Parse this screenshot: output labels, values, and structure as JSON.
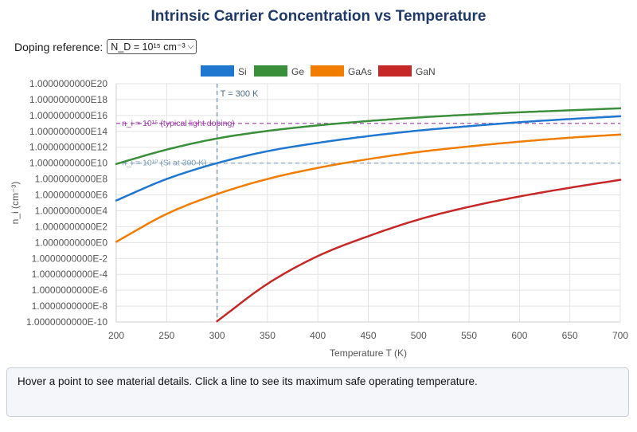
{
  "page": {
    "title": "Intrinsic Carrier Concentration vs Temperature",
    "doping_label": "Doping reference:",
    "doping_selected": "N_D = 10¹⁵ cm⁻³",
    "info_text": "Hover a point to see material details. Click a line to see its maximum safe operating temperature."
  },
  "chart_data": {
    "type": "line",
    "title": "Intrinsic Carrier Concentration vs Temperature",
    "xlabel": "Temperature T (K)",
    "ylabel": "n_i (cm⁻³)",
    "xlim": [
      200,
      700
    ],
    "ylim_log10": [
      -10,
      20
    ],
    "yscale": "log",
    "grid": true,
    "legend_position": "top-center",
    "x_ticks": [
      "200",
      "250",
      "300",
      "350",
      "400",
      "450",
      "500",
      "550",
      "600",
      "650",
      "700"
    ],
    "y_ticks": [
      "1.0000000000E20",
      "1.0000000000E18",
      "1.0000000000E16",
      "1.0000000000E14",
      "1.0000000000E12",
      "1.0000000000E10",
      "1.0000000000E8",
      "1.0000000000E6",
      "1.0000000000E4",
      "1.0000000000E2",
      "1.0000000000E0",
      "1.0000000000E-2",
      "1.0000000000E-4",
      "1.0000000000E-6",
      "1.0000000000E-8",
      "1.0000000000E-10"
    ],
    "x": [
      200,
      250,
      300,
      350,
      400,
      450,
      500,
      550,
      600,
      650,
      700
    ],
    "series": [
      {
        "name": "Si",
        "color": "#1f77d0",
        "log10_values": [
          5.3,
          8.0,
          10.0,
          11.5,
          12.55,
          13.4,
          14.1,
          14.65,
          15.15,
          15.55,
          15.9
        ]
      },
      {
        "name": "Ge",
        "color": "#3a8f3a",
        "log10_values": [
          9.9,
          11.7,
          13.1,
          14.05,
          14.75,
          15.3,
          15.75,
          16.1,
          16.4,
          16.65,
          16.9
        ]
      },
      {
        "name": "GaAs",
        "color": "#f07d00",
        "log10_values": [
          0.1,
          3.6,
          6.1,
          8.0,
          9.4,
          10.5,
          11.4,
          12.1,
          12.7,
          13.2,
          13.6
        ]
      },
      {
        "name": "GaN",
        "color": "#c62828",
        "log10_values": [
          null,
          null,
          -9.9,
          -5.2,
          -1.7,
          0.8,
          2.9,
          4.5,
          5.8,
          6.9,
          7.9
        ]
      }
    ],
    "annotations": [
      {
        "type": "vline",
        "x": 300,
        "label": "T = 300 K",
        "color": "#7ea0bd"
      },
      {
        "type": "hline",
        "y_log10": 15,
        "label": "n_i = 10¹⁵ (typical light doping)",
        "color": "#9c3aa8"
      },
      {
        "type": "hline",
        "y_log10": 10,
        "label": "n_i = 10¹⁰ (Si at 300 K)",
        "color": "#7ea0bd"
      }
    ]
  }
}
